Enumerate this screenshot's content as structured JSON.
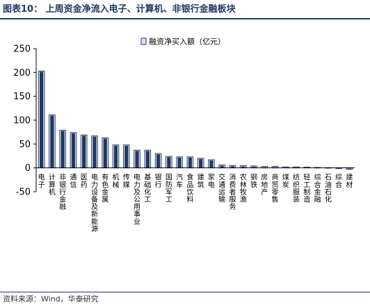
{
  "header": {
    "title": "图表10：  上周资金净流入电子、计算机、非银行金融板块"
  },
  "footer": {
    "source": "资料来源：Wind，华泰研究"
  },
  "chart_data": {
    "type": "bar",
    "title": "",
    "xlabel": "",
    "ylabel": "",
    "ylim": [
      -50,
      250
    ],
    "yticks": [
      -50,
      0,
      50,
      100,
      150,
      200,
      250
    ],
    "grid": false,
    "legend_position": "top-center",
    "categories": [
      "电子",
      "计算机",
      "非银行金融",
      "通信",
      "医药",
      "电力设备及新能源",
      "有色金属",
      "机械",
      "传媒",
      "电力及公用事业",
      "基础化工",
      "银行",
      "国防军工",
      "汽车",
      "食品饮料",
      "建筑",
      "家电",
      "交通运输",
      "消费者服务",
      "农林牧渔",
      "钢铁",
      "房地产",
      "商贸零售",
      "煤炭",
      "纺织服装",
      "轻工制造",
      "综合金融",
      "石油石化",
      "综合",
      "建材"
    ],
    "series": [
      {
        "name": "融资净买入额（亿元）",
        "color": "#1f3864",
        "values": [
          203,
          111,
          79,
          74,
          69,
          67,
          63,
          48,
          48,
          37,
          37,
          30,
          24,
          23,
          23,
          20,
          17,
          6,
          5,
          4.5,
          4,
          3,
          3,
          2,
          2,
          1.5,
          1,
          0.5,
          -1.5,
          -3
        ]
      }
    ]
  }
}
